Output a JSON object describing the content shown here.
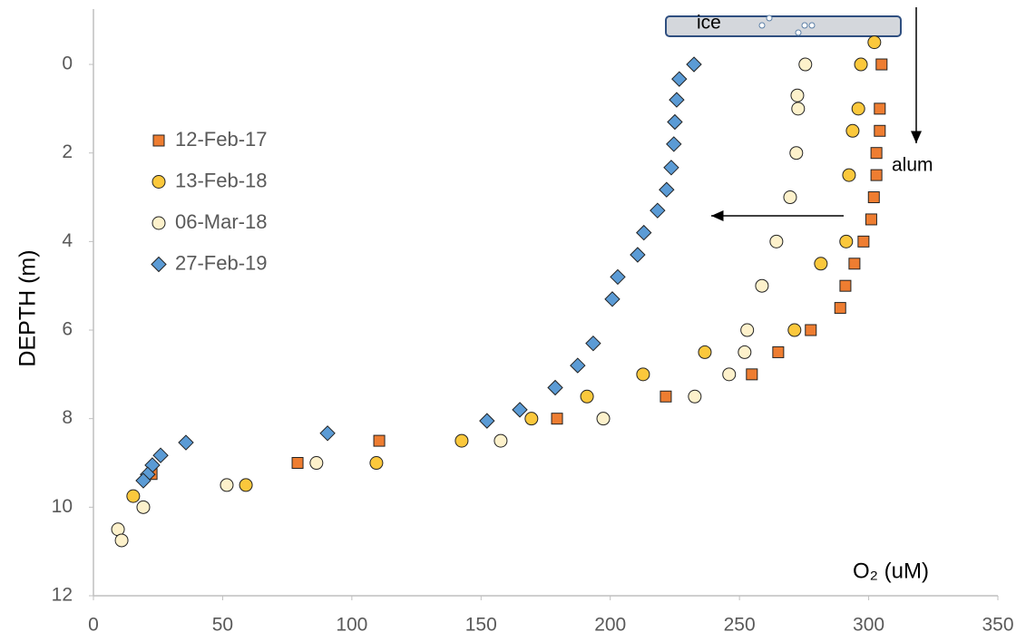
{
  "chart_data": {
    "type": "scatter",
    "x_label": "O₂ (uM)",
    "y_label": "DEPTH (m)",
    "xlim": [
      0,
      350
    ],
    "xticks": [
      0,
      50,
      100,
      150,
      200,
      250,
      300,
      350
    ],
    "ylim": [
      -1.25,
      12
    ],
    "yticks": [
      0,
      2,
      4,
      6,
      8,
      10,
      12
    ],
    "y_inverted": true,
    "grid": false,
    "annotations": [
      "ice",
      "alum"
    ],
    "series": [
      {
        "name": "12-Feb-17",
        "color": "#ee7d31",
        "marker": "square",
        "x": [
          305,
          304.3,
          304.3,
          303,
          303,
          302,
          301,
          298,
          294.5,
          291,
          289,
          277.6,
          265,
          254.8,
          221.5,
          179.4,
          110.6,
          79,
          22.5
        ],
        "values": [
          0,
          1,
          1.5,
          2,
          2.5,
          3,
          3.5,
          4,
          4.5,
          5,
          5.5,
          6,
          6.5,
          7,
          7.5,
          8,
          8.5,
          9,
          9.25
        ]
      },
      {
        "name": "13-Feb-18",
        "color": "#fbc83c",
        "marker": "circle",
        "x": [
          302.2,
          297,
          296,
          293.8,
          292.4,
          291.3,
          281.5,
          271.3,
          236.6,
          212.7,
          191,
          169.5,
          142.5,
          109.5,
          59,
          15.4
        ],
        "values": [
          -0.5,
          0,
          1,
          1.5,
          2.5,
          4,
          4.5,
          6,
          6.5,
          7,
          7.5,
          8,
          8.5,
          9,
          9.5,
          9.75
        ]
      },
      {
        "name": "06-Mar-18",
        "color": "#fdf1cb",
        "marker": "circle",
        "x": [
          275.5,
          272.4,
          272.7,
          272,
          269.6,
          264.3,
          258.7,
          253,
          252,
          246,
          232.7,
          197.3,
          157.6,
          86.3,
          51.6,
          19.3,
          9.5,
          10.9
        ],
        "values": [
          0,
          0.7,
          1,
          2,
          3,
          4,
          5,
          6,
          6.5,
          7,
          7.5,
          8,
          8.5,
          9,
          9.5,
          10,
          10.5,
          10.75
        ]
      },
      {
        "name": "27-Feb-19",
        "color": "#5b9bd5",
        "marker": "diamond",
        "x": [
          232.4,
          226.7,
          225.7,
          225,
          224.6,
          223.6,
          221.8,
          218.3,
          213,
          210.6,
          202.9,
          200.8,
          193.4,
          187.4,
          178.7,
          165,
          152.3,
          90.6,
          35.8,
          26,
          22.8,
          21,
          19.3
        ],
        "values": [
          0,
          0.33,
          0.8,
          1.3,
          1.8,
          2.33,
          2.83,
          3.3,
          3.8,
          4.3,
          4.8,
          5.3,
          6.3,
          6.8,
          7.3,
          7.8,
          8.05,
          8.33,
          8.54,
          8.83,
          9.05,
          9.26,
          9.4
        ]
      }
    ]
  }
}
